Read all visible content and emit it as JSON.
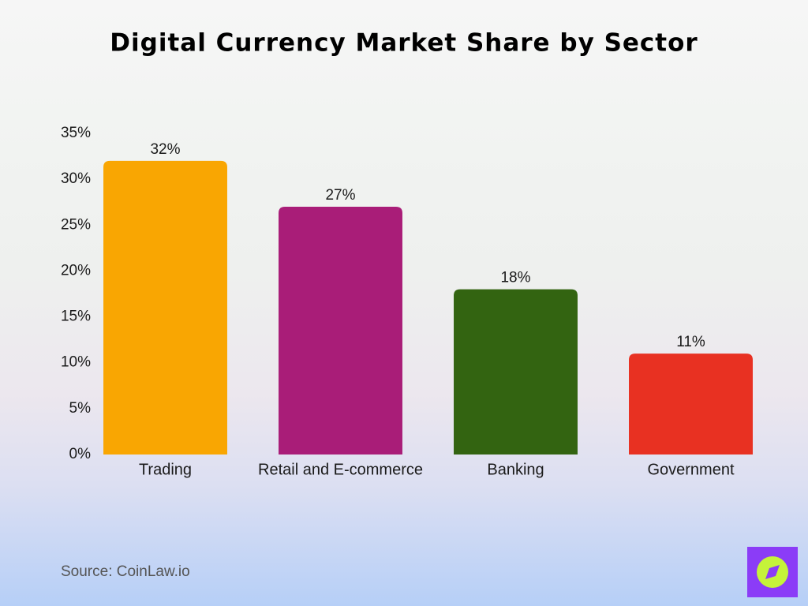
{
  "chart_data": {
    "type": "bar",
    "title": "Digital Currency Market Share by Sector",
    "categories": [
      "Trading",
      "Retail and E-commerce",
      "Banking",
      "Government"
    ],
    "values": [
      32,
      27,
      18,
      11
    ],
    "value_labels": [
      "32%",
      "27%",
      "18%",
      "11%"
    ],
    "colors": [
      "#f9a602",
      "#a91d78",
      "#336411",
      "#e83122"
    ],
    "ylim": [
      0,
      35
    ],
    "yticks": [
      {
        "value": 0,
        "label": "0%"
      },
      {
        "value": 5,
        "label": "5%"
      },
      {
        "value": 10,
        "label": "10%"
      },
      {
        "value": 15,
        "label": "15%"
      },
      {
        "value": 20,
        "label": "20%"
      },
      {
        "value": 25,
        "label": "25%"
      },
      {
        "value": 30,
        "label": "30%"
      },
      {
        "value": 35,
        "label": "35%"
      }
    ],
    "grid": false,
    "source": "Source: CoinLaw.io"
  }
}
